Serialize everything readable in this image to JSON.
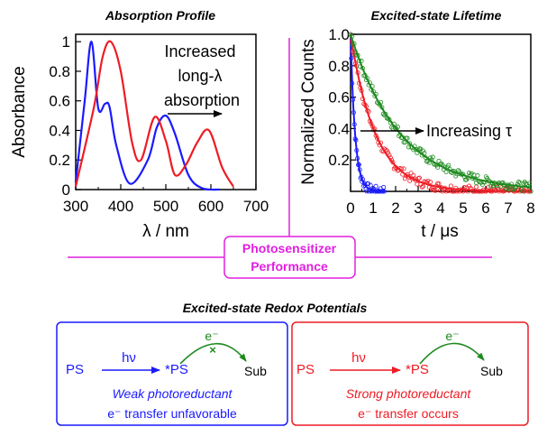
{
  "colors": {
    "blue": "#1a1aff",
    "red": "#ee1c25",
    "green": "#1e8a1e",
    "magenta": "#e020e0",
    "black": "#000000"
  },
  "absorption": {
    "title": "Absorption Profile",
    "ylabel": "Absorbance",
    "xlabel": "λ / nm",
    "x_ticks": [
      "300",
      "400",
      "500",
      "600",
      "700"
    ],
    "y_ticks": [
      "0",
      "0.2",
      "0.4",
      "0.6",
      "0.8",
      "1"
    ],
    "annotation": [
      "Increased",
      "long-λ",
      "absorption"
    ]
  },
  "lifetime": {
    "title": "Excited-state Lifetime",
    "ylabel": "Normalized Counts",
    "xlabel": "t / μs",
    "x_ticks": [
      "0",
      "1",
      "2",
      "3",
      "4",
      "5",
      "6",
      "7",
      "8"
    ],
    "y_ticks": [
      "0.2",
      "0.4",
      "0.6",
      "0.8",
      "1.0"
    ],
    "annotation": "Increasing τ"
  },
  "center": {
    "line1": "Photosensitizer",
    "line2": "Performance"
  },
  "redox": {
    "title": "Excited-state Redox Potentials",
    "weak": {
      "ps": "PS",
      "hv": "hν",
      "ps_star": "*PS",
      "electron": "e⁻",
      "sub": "Sub",
      "caption1": "Weak photoreductant",
      "caption2": "e⁻ transfer unfavorable"
    },
    "strong": {
      "ps": "PS",
      "hv": "hν",
      "ps_star": "*PS",
      "electron": "e⁻",
      "sub": "Sub",
      "caption1": "Strong photoreductant",
      "caption2": "e⁻ transfer occurs"
    }
  },
  "chart_data": [
    {
      "type": "line",
      "title": "Absorption Profile",
      "xlabel": "λ / nm",
      "ylabel": "Absorbance",
      "xlim": [
        300,
        700
      ],
      "ylim": [
        0,
        1.05
      ],
      "series": [
        {
          "color": "#1a1aff",
          "x": [
            300,
            320,
            335,
            350,
            365,
            375,
            390,
            420,
            460,
            480,
            500,
            520,
            550,
            580,
            620
          ],
          "y": [
            0.05,
            0.6,
            1.0,
            0.55,
            0.58,
            0.56,
            0.3,
            0.04,
            0.2,
            0.42,
            0.5,
            0.38,
            0.1,
            0.01,
            0.0
          ]
        },
        {
          "color": "#ee1c25",
          "x": [
            300,
            340,
            360,
            378,
            400,
            425,
            445,
            475,
            500,
            520,
            545,
            570,
            596,
            625,
            650
          ],
          "y": [
            0.02,
            0.55,
            0.9,
            1.0,
            0.8,
            0.32,
            0.2,
            0.49,
            0.33,
            0.1,
            0.17,
            0.32,
            0.4,
            0.15,
            0.02
          ]
        }
      ]
    },
    {
      "type": "scatter",
      "title": "Excited-state Lifetime",
      "xlabel": "t / μs",
      "ylabel": "Normalized Counts",
      "xlim": [
        0,
        8
      ],
      "ylim": [
        0,
        1.0
      ],
      "series": [
        {
          "color": "#1a1aff",
          "lifetime_us": 0.2
        },
        {
          "color": "#ee1c25",
          "lifetime_us": 1.1
        },
        {
          "color": "#1e8a1e",
          "lifetime_us": 2.2
        }
      ]
    }
  ]
}
